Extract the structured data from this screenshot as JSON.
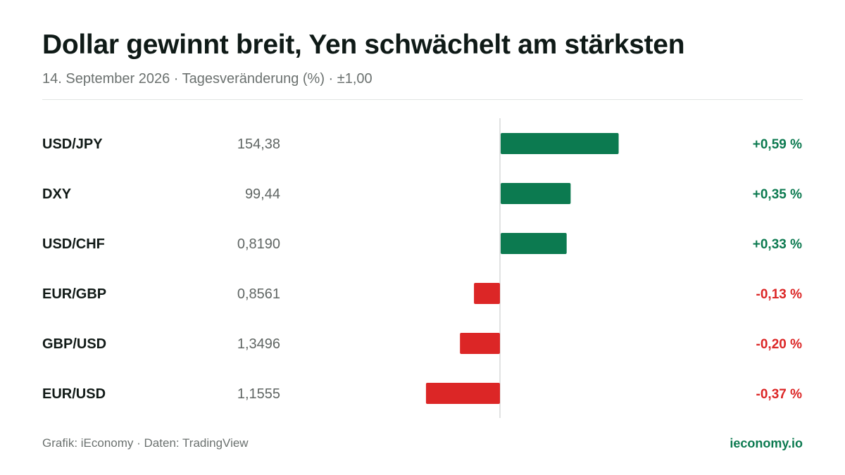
{
  "header": {
    "title": "Dollar gewinnt breit, Yen schwächelt am stärksten",
    "subtitle": "14. September 2026 · Tagesveränderung (%) · ±1,00"
  },
  "footer": {
    "source": "Grafik: iEconomy · Daten: TradingView",
    "brand": "ieconomy.io"
  },
  "colors": {
    "positive": "#0c7a50",
    "negative": "#dc2626",
    "zero_line": "#d7d9d8",
    "label": "#111a17",
    "price": "#5f6563"
  },
  "chart_data": {
    "type": "bar",
    "orientation": "horizontal",
    "title": "Dollar gewinnt breit, Yen schwächelt am stärksten",
    "subtitle": "14. September 2026 · Tagesveränderung (%) · ±1,00",
    "xlim": [
      -1.0,
      1.0
    ],
    "categories": [
      "USD/JPY",
      "DXY",
      "USD/CHF",
      "EUR/GBP",
      "GBP/USD",
      "EUR/USD"
    ],
    "prices": [
      "154,38",
      "99,44",
      "0,8190",
      "0,8561",
      "1,3496",
      "1,1555"
    ],
    "values": [
      0.59,
      0.35,
      0.33,
      -0.13,
      -0.2,
      -0.37
    ],
    "value_labels": [
      "+0,59 %",
      "+0,35 %",
      "+0,33 %",
      "-0,13 %",
      "-0,20 %",
      "-0,37 %"
    ]
  }
}
